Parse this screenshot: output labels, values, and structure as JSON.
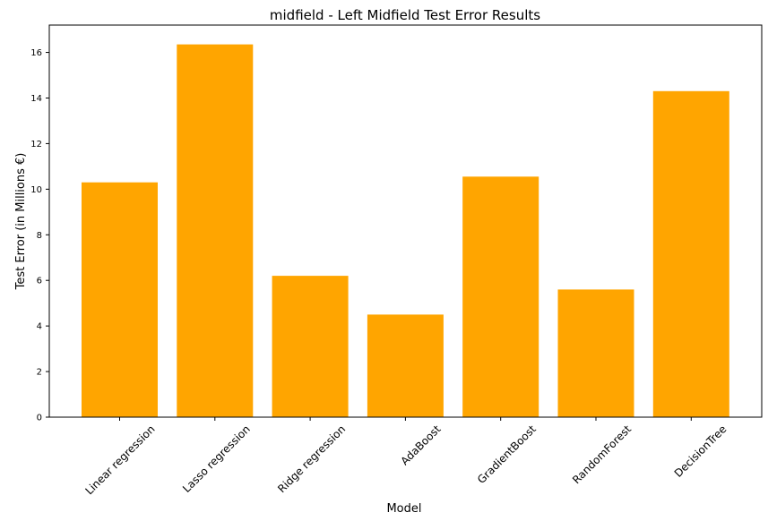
{
  "chart_data": {
    "type": "bar",
    "title": "midfield - Left Midfield Test Error Results",
    "xlabel": "Model",
    "ylabel": "Test Error (in Millions €)",
    "categories": [
      "Linear regression",
      "Lasso regression",
      "Ridge regression",
      "AdaBoost",
      "GradientBoost",
      "RandomForest",
      "DecisionTree"
    ],
    "values": [
      10.3,
      16.35,
      6.2,
      4.5,
      10.55,
      5.6,
      14.3
    ],
    "yticks": [
      0,
      2,
      4,
      6,
      8,
      10,
      12,
      14,
      16
    ],
    "ylim": [
      0,
      17.2
    ],
    "bar_color": "#ffa500",
    "grid": false,
    "legend": "none"
  }
}
